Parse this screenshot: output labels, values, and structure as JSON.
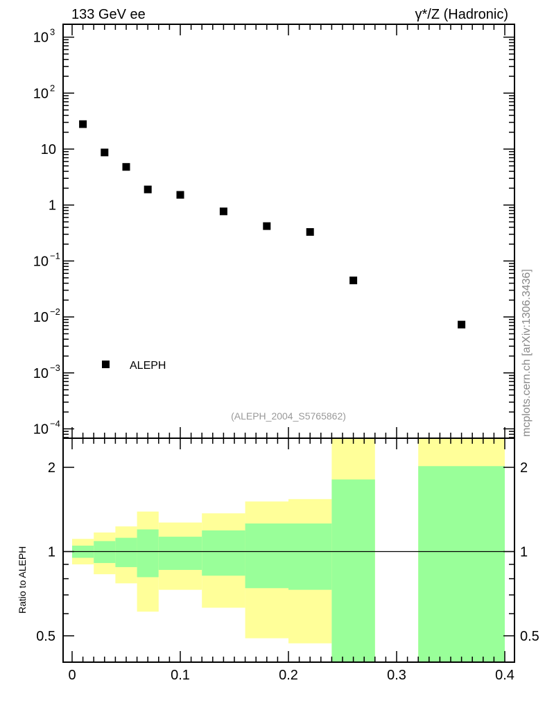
{
  "chart_data": [
    {
      "type": "scatter",
      "title_left": "133 GeV ee",
      "title_right": "γ*/Z (Hadronic)",
      "yscale": "log",
      "ylim": [
        6.8e-05,
        1700
      ],
      "xlim": [
        -0.0075,
        0.4075
      ],
      "ytick_labels": [
        {
          "v": 1000,
          "base": "10",
          "exp": "3"
        },
        {
          "v": 100,
          "base": "10",
          "exp": "2"
        },
        {
          "v": 10,
          "base": "10",
          "exp": ""
        },
        {
          "v": 1,
          "base": "1",
          "exp": ""
        },
        {
          "v": 0.1,
          "base": "10",
          "exp": "−1"
        },
        {
          "v": 0.01,
          "base": "10",
          "exp": "−2"
        },
        {
          "v": 0.001,
          "base": "10",
          "exp": "−3"
        },
        {
          "v": 0.0001,
          "base": "10",
          "exp": "−4"
        }
      ],
      "series": [
        {
          "name": "ALEPH",
          "color": "#000000",
          "x": [
            0.01,
            0.03,
            0.05,
            0.07,
            0.1,
            0.14,
            0.18,
            0.22,
            0.26,
            0.36
          ],
          "y": [
            27.9,
            8.7,
            4.8,
            1.9,
            1.52,
            0.77,
            0.42,
            0.33,
            0.045,
            0.0073
          ]
        }
      ],
      "legend": {
        "label": "ALEPH",
        "position": "bottom-left"
      },
      "annotation": "(ALEPH_2004_S5765862)",
      "side_label": "mcplots.cern.ch [arXiv:1306.3436]"
    },
    {
      "type": "area",
      "ylabel": "Ratio to ALEPH",
      "yscale": "log",
      "ylim": [
        0.4,
        2.5
      ],
      "ytick_labels": [
        {
          "v": 2,
          "t": "2"
        },
        {
          "v": 1,
          "t": "1"
        },
        {
          "v": 0.5,
          "t": "0.5"
        }
      ],
      "xtick_labels": [
        {
          "v": 0,
          "t": "0"
        },
        {
          "v": 0.1,
          "t": "0.1"
        },
        {
          "v": 0.2,
          "t": "0.2"
        },
        {
          "v": 0.3,
          "t": "0.3"
        },
        {
          "v": 0.4,
          "t": "0.4"
        }
      ],
      "colors": {
        "inner": "#99ff99",
        "outer": "#ffff99"
      },
      "bins": [
        {
          "lo": 0.0,
          "hi": 0.02,
          "g": [
            0.95,
            1.05
          ],
          "y": [
            0.9,
            1.11
          ]
        },
        {
          "lo": 0.02,
          "hi": 0.04,
          "g": [
            0.91,
            1.09
          ],
          "y": [
            0.83,
            1.17
          ]
        },
        {
          "lo": 0.04,
          "hi": 0.06,
          "g": [
            0.88,
            1.12
          ],
          "y": [
            0.77,
            1.23
          ]
        },
        {
          "lo": 0.06,
          "hi": 0.08,
          "g": [
            0.81,
            1.2
          ],
          "y": [
            0.61,
            1.39
          ]
        },
        {
          "lo": 0.08,
          "hi": 0.12,
          "g": [
            0.86,
            1.13
          ],
          "y": [
            0.73,
            1.27
          ]
        },
        {
          "lo": 0.12,
          "hi": 0.16,
          "g": [
            0.82,
            1.19
          ],
          "y": [
            0.63,
            1.37
          ]
        },
        {
          "lo": 0.16,
          "hi": 0.2,
          "g": [
            0.74,
            1.26
          ],
          "y": [
            0.49,
            1.51
          ]
        },
        {
          "lo": 0.2,
          "hi": 0.24,
          "g": [
            0.73,
            1.26
          ],
          "y": [
            0.47,
            1.54
          ]
        },
        {
          "lo": 0.24,
          "hi": 0.28,
          "g": [
            0.3,
            1.81
          ],
          "y": [
            0.3,
            3.0
          ]
        },
        {
          "lo": 0.32,
          "hi": 0.4,
          "g": [
            0.3,
            2.02
          ],
          "y": [
            0.3,
            3.0
          ]
        }
      ],
      "reference_line": 1
    }
  ]
}
